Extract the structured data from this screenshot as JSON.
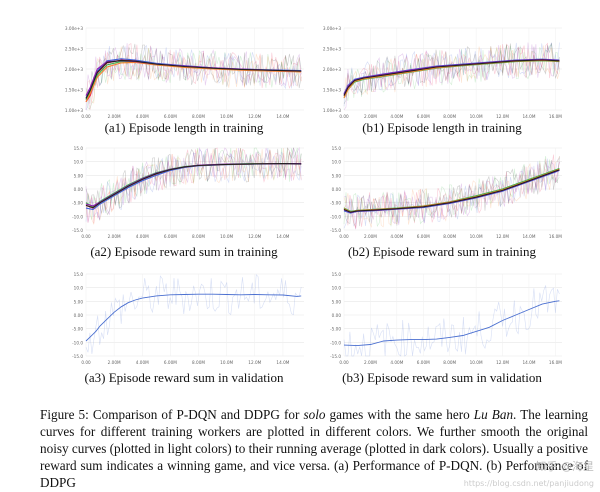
{
  "chart_data": [
    {
      "id": "a1",
      "type": "line",
      "caption": "(a1) Episode length in training",
      "ylim": [
        1.0,
        3.0
      ],
      "xlim": [
        0,
        15.5
      ],
      "yticks": [
        "1.00e+3",
        "1.50e+3",
        "2.00e+3",
        "2.50e+3",
        "3.00e+3"
      ],
      "xticks": [
        "0.00",
        "2.00M",
        "4.00M",
        "6.00M",
        "8.00M",
        "10.0M",
        "12.0M",
        "14.0M"
      ],
      "series": [
        {
          "color": "#e6194b",
          "x": [
            0,
            0.3,
            0.8,
            1.5,
            2.5,
            3.5,
            5,
            7,
            9,
            11,
            13,
            15.3
          ],
          "y": [
            1.2,
            1.35,
            1.9,
            2.15,
            2.22,
            2.2,
            2.12,
            2.06,
            2.02,
            1.98,
            1.97,
            1.95
          ]
        },
        {
          "color": "#3cb44b",
          "x": [
            0,
            0.3,
            0.8,
            1.5,
            2.5,
            3.5,
            5,
            7,
            9,
            11,
            13,
            15.3
          ],
          "y": [
            1.25,
            1.45,
            1.85,
            2.1,
            2.18,
            2.17,
            2.1,
            2.05,
            2.01,
            1.98,
            1.96,
            1.94
          ]
        },
        {
          "color": "#4363d8",
          "x": [
            0,
            0.3,
            0.8,
            1.5,
            2.5,
            3.5,
            5,
            7,
            9,
            11,
            13,
            15.3
          ],
          "y": [
            1.3,
            1.5,
            1.95,
            2.2,
            2.25,
            2.22,
            2.14,
            2.08,
            2.03,
            2.0,
            1.98,
            1.96
          ]
        },
        {
          "color": "#f58231",
          "x": [
            0,
            0.3,
            0.8,
            1.5,
            2.5,
            3.5,
            5,
            7,
            9,
            11,
            13,
            15.3
          ],
          "y": [
            1.2,
            1.4,
            1.8,
            2.05,
            2.15,
            2.16,
            2.1,
            2.04,
            2.0,
            1.97,
            1.95,
            1.93
          ]
        },
        {
          "color": "#911eb4",
          "x": [
            0,
            0.3,
            0.8,
            1.5,
            2.5,
            3.5,
            5,
            7,
            9,
            11,
            13,
            15.3
          ],
          "y": [
            1.35,
            1.55,
            2.0,
            2.18,
            2.2,
            2.18,
            2.12,
            2.07,
            2.03,
            2.0,
            1.97,
            1.95
          ]
        },
        {
          "color": "#222222",
          "x": [
            0,
            0.3,
            0.8,
            1.5,
            2.5,
            3.5,
            5,
            7,
            9,
            11,
            13,
            15.3
          ],
          "y": [
            1.28,
            1.48,
            1.92,
            2.16,
            2.21,
            2.19,
            2.12,
            2.06,
            2.02,
            1.99,
            1.97,
            1.95
          ]
        }
      ]
    },
    {
      "id": "b1",
      "type": "line",
      "caption": "(b1) Episode length in training",
      "ylim": [
        1.0,
        3.0
      ],
      "xlim": [
        0,
        16.5
      ],
      "yticks": [
        "1.00e+3",
        "1.50e+3",
        "2.00e+3",
        "2.50e+3",
        "3.00e+3"
      ],
      "xticks": [
        "0.00",
        "2.00M",
        "4.00M",
        "6.00M",
        "8.00M",
        "10.0M",
        "12.0M",
        "14.0M",
        "16.0M"
      ],
      "series": [
        {
          "color": "#e6194b",
          "x": [
            0,
            0.3,
            0.8,
            1.5,
            3,
            5,
            7,
            9,
            11,
            13,
            15,
            16.3
          ],
          "y": [
            1.35,
            1.55,
            1.72,
            1.78,
            1.85,
            1.95,
            2.05,
            2.1,
            2.15,
            2.2,
            2.22,
            2.2
          ]
        },
        {
          "color": "#3cb44b",
          "x": [
            0,
            0.3,
            0.8,
            1.5,
            3,
            5,
            7,
            9,
            11,
            13,
            15,
            16.3
          ],
          "y": [
            1.3,
            1.5,
            1.68,
            1.75,
            1.82,
            1.92,
            2.02,
            2.08,
            2.13,
            2.18,
            2.2,
            2.18
          ]
        },
        {
          "color": "#4363d8",
          "x": [
            0,
            0.3,
            0.8,
            1.5,
            3,
            5,
            7,
            9,
            11,
            13,
            15,
            16.3
          ],
          "y": [
            1.4,
            1.6,
            1.75,
            1.8,
            1.88,
            1.98,
            2.07,
            2.12,
            2.17,
            2.22,
            2.24,
            2.22
          ]
        },
        {
          "color": "#f58231",
          "x": [
            0,
            0.3,
            0.8,
            1.5,
            3,
            5,
            7,
            9,
            11,
            13,
            15,
            16.3
          ],
          "y": [
            1.3,
            1.5,
            1.7,
            1.76,
            1.83,
            1.93,
            2.03,
            2.09,
            2.14,
            2.19,
            2.21,
            2.19
          ]
        },
        {
          "color": "#911eb4",
          "x": [
            0,
            0.3,
            0.8,
            1.5,
            3,
            5,
            7,
            9,
            11,
            13,
            15,
            16.3
          ],
          "y": [
            1.38,
            1.58,
            1.73,
            1.79,
            1.87,
            1.97,
            2.06,
            2.11,
            2.16,
            2.21,
            2.23,
            2.21
          ]
        },
        {
          "color": "#222222",
          "x": [
            0,
            0.3,
            0.8,
            1.5,
            3,
            5,
            7,
            9,
            11,
            13,
            15,
            16.3
          ],
          "y": [
            1.35,
            1.55,
            1.72,
            1.78,
            1.85,
            1.95,
            2.05,
            2.1,
            2.15,
            2.2,
            2.22,
            2.2
          ]
        }
      ]
    },
    {
      "id": "a2",
      "type": "line",
      "caption": "(a2) Episode reward sum in training",
      "ylim": [
        -15,
        15
      ],
      "xlim": [
        0,
        15.5
      ],
      "yticks": [
        "-15.0",
        "-10.0",
        "-5.00",
        "0.00",
        "5.00",
        "10.0",
        "15.0"
      ],
      "xticks": [
        "0.00",
        "2.00M",
        "4.00M",
        "6.00M",
        "8.00M",
        "10.0M",
        "12.0M",
        "14.0M"
      ],
      "series": [
        {
          "color": "#e6194b",
          "x": [
            0,
            0.5,
            1,
            2,
            3,
            4,
            5,
            6,
            7,
            8,
            10,
            12,
            14,
            15.3
          ],
          "y": [
            -6,
            -7,
            -5,
            -2,
            1,
            3.5,
            5.5,
            7,
            8,
            8.6,
            9,
            9.2,
            9.3,
            9.2
          ]
        },
        {
          "color": "#3cb44b",
          "x": [
            0,
            0.5,
            1,
            2,
            3,
            4,
            5,
            6,
            7,
            8,
            10,
            12,
            14,
            15.3
          ],
          "y": [
            -5,
            -6.5,
            -4.5,
            -1.5,
            1.5,
            4,
            6,
            7.3,
            8.2,
            8.7,
            9.1,
            9.3,
            9.3,
            9.2
          ]
        },
        {
          "color": "#4363d8",
          "x": [
            0,
            0.5,
            1,
            2,
            3,
            4,
            5,
            6,
            7,
            8,
            10,
            12,
            14,
            15.3
          ],
          "y": [
            -7,
            -7.5,
            -5.5,
            -2.5,
            0.5,
            3,
            5,
            6.8,
            7.9,
            8.5,
            8.9,
            9.1,
            9.2,
            9.1
          ]
        },
        {
          "color": "#f58231",
          "x": [
            0,
            0.5,
            1,
            2,
            3,
            4,
            5,
            6,
            7,
            8,
            10,
            12,
            14,
            15.3
          ],
          "y": [
            -6,
            -6.8,
            -5,
            -2,
            1,
            3.6,
            5.6,
            7.1,
            8.1,
            8.6,
            9.0,
            9.2,
            9.3,
            9.2
          ]
        },
        {
          "color": "#911eb4",
          "x": [
            0,
            0.5,
            1,
            2,
            3,
            4,
            5,
            6,
            7,
            8,
            10,
            12,
            14,
            15.3
          ],
          "y": [
            -5.5,
            -6.2,
            -4.8,
            -1.8,
            1.2,
            3.8,
            5.8,
            7.2,
            8.1,
            8.7,
            9.1,
            9.2,
            9.3,
            9.3
          ]
        },
        {
          "color": "#222222",
          "x": [
            0,
            0.5,
            1,
            2,
            3,
            4,
            5,
            6,
            7,
            8,
            10,
            12,
            14,
            15.3
          ],
          "y": [
            -6,
            -6.8,
            -5,
            -2,
            1,
            3.5,
            5.6,
            7.1,
            8.1,
            8.6,
            9.0,
            9.2,
            9.3,
            9.2
          ]
        }
      ]
    },
    {
      "id": "b2",
      "type": "line",
      "caption": "(b2) Episode reward sum in training",
      "ylim": [
        -15,
        15
      ],
      "xlim": [
        0,
        16.5
      ],
      "yticks": [
        "-15.0",
        "-10.0",
        "-5.00",
        "0.00",
        "5.00",
        "10.0",
        "15.0"
      ],
      "xticks": [
        "0.00",
        "2.00M",
        "4.00M",
        "6.00M",
        "8.00M",
        "10.0M",
        "12.0M",
        "14.0M",
        "16.0M"
      ],
      "series": [
        {
          "color": "#e6194b",
          "x": [
            0,
            0.5,
            1,
            2,
            4,
            6,
            8,
            10,
            12,
            14,
            16,
            16.3
          ],
          "y": [
            -7.5,
            -8.5,
            -8,
            -7.8,
            -7.2,
            -6.5,
            -5,
            -3,
            -0.5,
            3,
            6.5,
            7
          ]
        },
        {
          "color": "#3cb44b",
          "x": [
            0,
            0.5,
            1,
            2,
            4,
            6,
            8,
            10,
            12,
            14,
            16,
            16.3
          ],
          "y": [
            -7,
            -8.2,
            -7.8,
            -7.5,
            -7,
            -6.2,
            -4.7,
            -2.5,
            0,
            3.5,
            7,
            7.5
          ]
        },
        {
          "color": "#4363d8",
          "x": [
            0,
            0.5,
            1,
            2,
            4,
            6,
            8,
            10,
            12,
            14,
            16,
            16.3
          ],
          "y": [
            -8,
            -8.8,
            -8.2,
            -8,
            -7.4,
            -6.8,
            -5.3,
            -3.3,
            -0.8,
            2.7,
            6.2,
            6.8
          ]
        },
        {
          "color": "#f58231",
          "x": [
            0,
            0.5,
            1,
            2,
            4,
            6,
            8,
            10,
            12,
            14,
            16,
            16.3
          ],
          "y": [
            -7.2,
            -8.4,
            -7.9,
            -7.6,
            -7.1,
            -6.3,
            -4.8,
            -2.8,
            -0.3,
            3.2,
            6.7,
            7.2
          ]
        },
        {
          "color": "#911eb4",
          "x": [
            0,
            0.5,
            1,
            2,
            4,
            6,
            8,
            10,
            12,
            14,
            16,
            16.3
          ],
          "y": [
            -7.6,
            -8.6,
            -8.1,
            -7.9,
            -7.3,
            -6.6,
            -5.1,
            -3.1,
            -0.6,
            2.9,
            6.4,
            6.9
          ]
        },
        {
          "color": "#222222",
          "x": [
            0,
            0.5,
            1,
            2,
            4,
            6,
            8,
            10,
            12,
            14,
            16,
            16.3
          ],
          "y": [
            -7.5,
            -8.5,
            -8,
            -7.8,
            -7.2,
            -6.5,
            -5,
            -3,
            -0.5,
            3,
            6.5,
            7
          ]
        }
      ]
    },
    {
      "id": "a3",
      "type": "line",
      "caption": "(a3) Episode reward sum in validation",
      "ylim": [
        -15,
        15
      ],
      "xlim": [
        0,
        15.5
      ],
      "yticks": [
        "-15.0",
        "-10.0",
        "-5.00",
        "0.00",
        "5.00",
        "10.0",
        "15.0"
      ],
      "xticks": [
        "0.00",
        "2.00M",
        "4.00M",
        "6.00M",
        "8.00M",
        "10.0M",
        "12.0M",
        "14.0M"
      ],
      "series": [
        {
          "color": "#4a6fd0",
          "x": [
            0,
            0.3,
            0.7,
            1,
            1.5,
            2,
            2.5,
            3,
            3.5,
            4,
            5,
            6,
            7,
            8,
            9,
            10,
            11,
            12,
            13,
            14,
            15,
            15.3
          ],
          "y": [
            -9.5,
            -8,
            -6,
            -4,
            -1.5,
            1,
            3,
            4.5,
            5.5,
            6.2,
            7,
            7.4,
            7.5,
            7.6,
            7.6,
            7.5,
            7.4,
            7.5,
            7.4,
            7.3,
            6.8,
            7.0
          ]
        }
      ]
    },
    {
      "id": "b3",
      "type": "line",
      "caption": "(b3) Episode reward sum in validation",
      "ylim": [
        -15,
        15
      ],
      "xlim": [
        0,
        16.5
      ],
      "yticks": [
        "-15.0",
        "-10.0",
        "-5.00",
        "0.00",
        "5.00",
        "10.0",
        "15.0"
      ],
      "xticks": [
        "0.00",
        "2.00M",
        "4.00M",
        "6.00M",
        "8.00M",
        "10.0M",
        "12.0M",
        "14.0M",
        "16.0M"
      ],
      "series": [
        {
          "color": "#4a6fd0",
          "x": [
            0,
            1,
            2,
            3,
            4,
            5,
            6,
            7,
            8,
            9,
            10,
            11,
            12,
            13,
            14,
            15,
            16,
            16.3
          ],
          "y": [
            -11,
            -11.2,
            -10.8,
            -9.5,
            -9.2,
            -9.0,
            -9.0,
            -8.8,
            -8.2,
            -7.5,
            -6,
            -4.5,
            -2,
            0,
            2,
            4,
            5,
            5.2
          ]
        }
      ]
    }
  ],
  "figure_caption": {
    "p1": "Figure 5: Comparison of P-DQN and DDPG for ",
    "p1_em": "solo",
    "p2": " games with the same hero ",
    "p2_em": "Lu Ban",
    "p3": ". The learning curves for different training workers are plotted in different colors. We further smooth the original noisy curves (plotted in light colors) to their running average (plotted in dark colors). Usually a positive reward sum indicates a winning game, and vice versa. (a) Performance of P-DQN. (b) Performance of DDPG"
  },
  "watermark": {
    "line1": "知乎 @海星",
    "line2": "https://blog.csdn.net/panjiudong"
  }
}
